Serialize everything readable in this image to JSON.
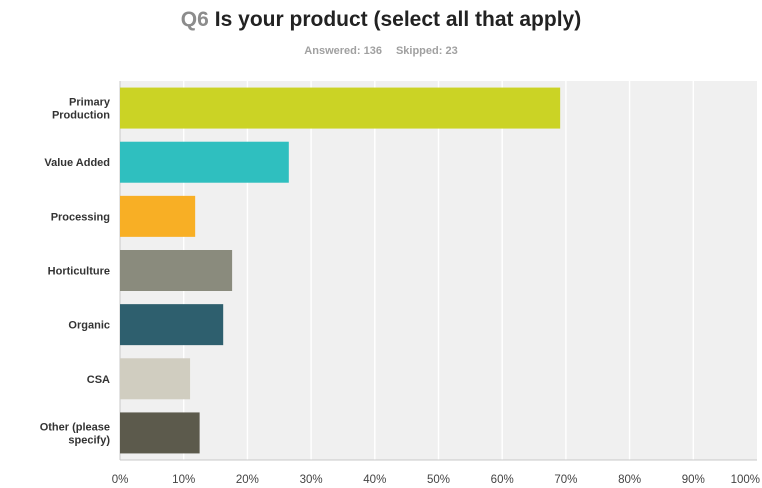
{
  "header": {
    "question_number": "Q6",
    "question_text": "Is your product (select all that apply)",
    "answered": "Answered: 136",
    "skipped": "Skipped: 23"
  },
  "chart_data": {
    "type": "bar",
    "orientation": "horizontal",
    "categories": [
      "Primary Production",
      "Value Added",
      "Processing",
      "Horticulture",
      "Organic",
      "CSA",
      "Other (please specify)"
    ],
    "category_lines": [
      [
        "Primary",
        "Production"
      ],
      [
        "Value Added"
      ],
      [
        "Processing"
      ],
      [
        "Horticulture"
      ],
      [
        "Organic"
      ],
      [
        "CSA"
      ],
      [
        "Other (please",
        "specify)"
      ]
    ],
    "values": [
      69.1,
      26.5,
      11.8,
      17.6,
      16.2,
      11.0,
      12.5
    ],
    "colors": [
      "#cbd325",
      "#2fbfbf",
      "#f8af25",
      "#8a8b7d",
      "#2e5f6e",
      "#d0cdc0",
      "#5c5a4c"
    ],
    "xlim": [
      0,
      100
    ],
    "xticks": [
      "0%",
      "10%",
      "20%",
      "30%",
      "40%",
      "50%",
      "60%",
      "70%",
      "80%",
      "90%",
      "100%"
    ],
    "grid": true,
    "plot_background": "#f0f0f0"
  }
}
